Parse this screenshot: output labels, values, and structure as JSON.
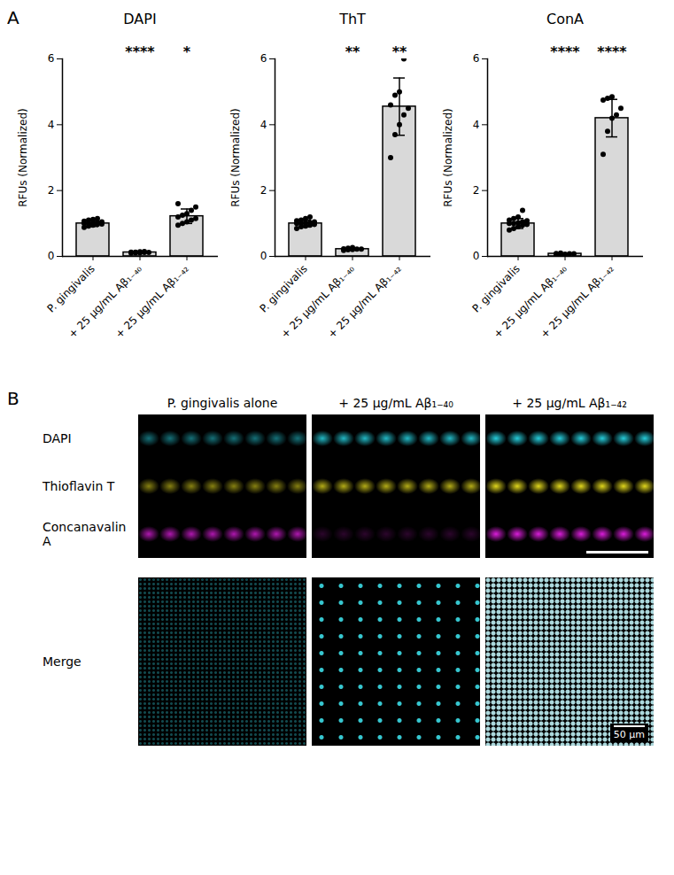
{
  "chart_data": [
    {
      "type": "bar",
      "title": "DAPI",
      "ylabel": "RFUs (Normalized)",
      "categories": [
        "P. gingivalis",
        "+ 25 µg/mL Aβ₁₋₄₀",
        "+ 25 µg/mL Aβ₁₋₄₂"
      ],
      "values": [
        1.0,
        0.12,
        1.22
      ],
      "errors": [
        0.09,
        0.02,
        0.22
      ],
      "points": [
        [
          0.88,
          0.92,
          0.95,
          0.97,
          0.98,
          1.0,
          1.0,
          1.02,
          1.03,
          1.05,
          1.07,
          1.1,
          1.12,
          1.15
        ],
        [
          0.1,
          0.11,
          0.11,
          0.12,
          0.12,
          0.13,
          0.13,
          0.14,
          0.15
        ],
        [
          0.95,
          1.0,
          1.05,
          1.1,
          1.15,
          1.2,
          1.25,
          1.3,
          1.4,
          1.5,
          1.6
        ]
      ],
      "significance": [
        null,
        "****",
        "*"
      ],
      "color": "#d9d9d9",
      "ylim": [
        0,
        6
      ],
      "yticks": [
        0,
        2,
        4,
        6
      ]
    },
    {
      "type": "bar",
      "title": "ThT",
      "ylabel": "RFUs (Normalized)",
      "categories": [
        "P. gingivalis",
        "+ 25 µg/mL Aβ₁₋₄₀",
        "+ 25 µg/mL Aβ₁₋₄₂"
      ],
      "values": [
        1.0,
        0.22,
        4.55
      ],
      "errors": [
        0.1,
        0.03,
        0.87
      ],
      "points": [
        [
          0.85,
          0.9,
          0.92,
          0.95,
          0.97,
          1.0,
          1.0,
          1.02,
          1.03,
          1.05,
          1.08,
          1.1,
          1.15,
          1.2
        ],
        [
          0.18,
          0.2,
          0.21,
          0.22,
          0.22,
          0.23,
          0.25,
          0.27
        ],
        [
          3.0,
          3.7,
          4.0,
          4.3,
          4.5,
          4.6,
          4.9,
          5.0,
          6.0
        ]
      ],
      "significance": [
        null,
        "**",
        "**"
      ],
      "color": "#d9d9d9",
      "ylim": [
        0,
        6
      ],
      "yticks": [
        0,
        2,
        4,
        6
      ]
    },
    {
      "type": "bar",
      "title": "ConA",
      "ylabel": "RFUs (Normalized)",
      "categories": [
        "P. gingivalis",
        "+ 25 µg/mL Aβ₁₋₄₀",
        "+ 25 µg/mL Aβ₁₋₄₂"
      ],
      "values": [
        1.0,
        0.08,
        4.2
      ],
      "errors": [
        0.15,
        0.02,
        0.57
      ],
      "points": [
        [
          0.8,
          0.85,
          0.9,
          0.95,
          0.97,
          1.0,
          1.0,
          1.02,
          1.05,
          1.08,
          1.1,
          1.15,
          1.2,
          1.4
        ],
        [
          0.05,
          0.06,
          0.07,
          0.08,
          0.08,
          0.09,
          0.1
        ],
        [
          3.1,
          3.8,
          4.2,
          4.3,
          4.5,
          4.75,
          4.8,
          4.85
        ]
      ],
      "significance": [
        null,
        "****",
        "****"
      ],
      "color": "#d9d9d9",
      "ylim": [
        0,
        6
      ],
      "yticks": [
        0,
        2,
        4,
        6
      ]
    }
  ],
  "panel_a_label": "A",
  "panel_b": {
    "label": "B",
    "columns": [
      "P. gingivalis alone",
      "+ 25 µg/mL Aβ₁₋₄₀",
      "+ 25 µg/mL Aβ₁₋₄₂"
    ],
    "rows": [
      "DAPI",
      "Thioflavin T",
      "Concanavalin A"
    ],
    "merge_row": "Merge",
    "scale_bar": "50 µm"
  }
}
